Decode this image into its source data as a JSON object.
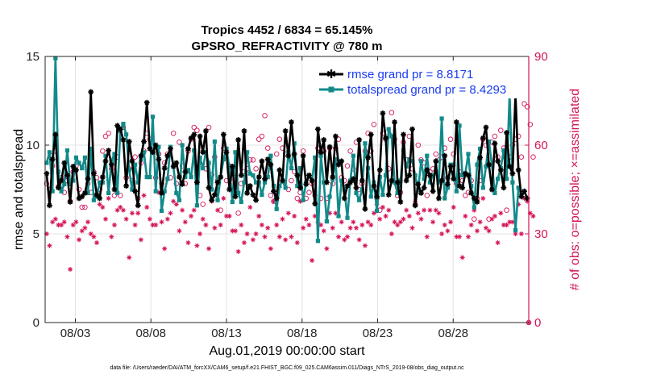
{
  "chart_data": {
    "type": "line",
    "title": "Tropics 4452 / 6834 = 65.145%",
    "subtitle": "GPSRO_REFRACTIVITY @ 780 m",
    "xlabel": "Aug.01,2019 00:00:00 start",
    "ylabel_left": "rmse and totalspread",
    "ylabel_right": "# of obs: o=possible; ×=assimilated",
    "footnote": "data file: /Users/raeder/DAI/ATM_forcXX/CAM6_setup/f.e21.FHIST_BGC.f09_025.CAM6assim.011/Diags_NTrS_2019-08/obs_diag_output.nc",
    "x_start_day": 0,
    "x_end_day": 32,
    "xticks": [
      {
        "day": 2,
        "label": "08/03"
      },
      {
        "day": 7,
        "label": "08/08"
      },
      {
        "day": 12,
        "label": "08/13"
      },
      {
        "day": 17,
        "label": "08/18"
      },
      {
        "day": 22,
        "label": "08/23"
      },
      {
        "day": 27,
        "label": "08/28"
      }
    ],
    "ylim_left": [
      0,
      15
    ],
    "yticks_left": [
      "0",
      "5",
      "10",
      "15"
    ],
    "ylim_right": [
      0,
      90
    ],
    "yticks_right": [
      "0",
      "30",
      "60",
      "90"
    ],
    "colors": {
      "rmse": "#000000",
      "spread": "#138a8a",
      "obs": "#d4145a",
      "legend_text": "#1a3cf0"
    },
    "legend": {
      "placement": "top-right",
      "entries": [
        "rmse grand pr = 8.8171",
        "totalspread grand pr = 8.4293"
      ]
    },
    "series": [
      {
        "name": "rmse",
        "axis": "left",
        "values": [
          8.4,
          6.6,
          9.2,
          10.6,
          7.6,
          8.0,
          9.0,
          8.3,
          6.8,
          8.8,
          8.6,
          7.0,
          7.1,
          7.3,
          8.1,
          13.0,
          8.4,
          7.2,
          7.0,
          8.2,
          9.1,
          9.7,
          8.9,
          7.5,
          11.1,
          10.9,
          10.3,
          7.7,
          10.2,
          9.1,
          7.4,
          6.6,
          9.4,
          10.2,
          12.4,
          9.8,
          9.6,
          10.0,
          9.2,
          7.3,
          8.7,
          9.4,
          9.8,
          8.8,
          9.0,
          8.2,
          7.8,
          8.5,
          9.8,
          10.4,
          10.6,
          7.9,
          10.5,
          9.6,
          10.8,
          7.6,
          6.9,
          7.2,
          7.9,
          8.2,
          10.6,
          9.6,
          7.5,
          8.8,
          7.1,
          10.3,
          8.3,
          10.8,
          7.3,
          7.7,
          7.2,
          6.9,
          8.2,
          9.1,
          8.1,
          9.2,
          8.9,
          7.4,
          7.0,
          8.6,
          8.0,
          10.8,
          9.4,
          11.3,
          9.5,
          8.3,
          7.6,
          9.4,
          7.8,
          8.3,
          8.0,
          6.7,
          10.9,
          9.6,
          10.3,
          7.9,
          9.9,
          8.2,
          10.5,
          8.9,
          9.1,
          7.0,
          7.7,
          7.9,
          8.1,
          7.6,
          10.3,
          8.0,
          6.4,
          9.3,
          10.6,
          7.7,
          7.1,
          8.6,
          11.8,
          10.4,
          7.2,
          8.0,
          11.3,
          7.9,
          6.8,
          10.6,
          8.0,
          8.3,
          10.9,
          6.6,
          7.8,
          7.3,
          7.6,
          8.6,
          8.3,
          7.4,
          9.1,
          7.0,
          8.0,
          9.4,
          7.8,
          8.8,
          8.1,
          11.3,
          7.7,
          7.6,
          8.4,
          8.3,
          7.3,
          7.0,
          6.8,
          9.3,
          10.4,
          11.0,
          8.9,
          7.5,
          10.1,
          9.1,
          8.6,
          7.6,
          10.7,
          8.8,
          8.4,
          12.9,
          8.6,
          7.1,
          7.4,
          7.0
        ]
      },
      {
        "name": "totalspread",
        "axis": "left",
        "values": [
          9.0,
          9.6,
          7.4,
          14.9,
          8.5,
          7.4,
          7.8,
          9.7,
          7.8,
          8.0,
          9.3,
          9.0,
          8.7,
          9.3,
          7.3,
          9.8,
          6.9,
          7.1,
          7.9,
          7.9,
          9.4,
          7.3,
          9.1,
          9.5,
          7.3,
          10.8,
          11.2,
          10.6,
          8.6,
          7.5,
          8.9,
          7.9,
          9.2,
          9.6,
          8.2,
          8.2,
          11.6,
          7.4,
          9.9,
          6.3,
          7.4,
          8.1,
          9.9,
          8.8,
          7.3,
          6.9,
          10.0,
          8.2,
          8.6,
          8.2,
          9.7,
          6.6,
          9.3,
          8.7,
          9.6,
          9.0,
          7.5,
          10.2,
          6.9,
          8.2,
          9.2,
          9.8,
          8.7,
          6.8,
          9.6,
          7.3,
          6.8,
          7.9,
          9.6,
          8.4,
          8.3,
          7.9,
          7.9,
          7.2,
          7.9,
          8.2,
          9.4,
          7.7,
          6.4,
          7.7,
          8.0,
          7.6,
          9.6,
          8.7,
          10.1,
          7.7,
          8.7,
          6.9,
          7.9,
          8.3,
          8.0,
          9.3,
          4.6,
          9.4,
          7.9,
          5.7,
          7.1,
          8.1,
          9.2,
          6.0,
          8.0,
          7.5,
          5.9,
          8.0,
          9.4,
          7.3,
          6.9,
          7.5,
          10.1,
          8.7,
          7.1,
          7.9,
          6.3,
          8.2,
          7.2,
          8.3,
          10.9,
          10.5,
          7.9,
          7.3,
          8.0,
          9.7,
          8.8,
          9.2,
          9.1,
          8.3,
          7.5,
          9.1,
          8.1,
          9.4,
          7.9,
          8.3,
          8.5,
          7.9,
          11.5,
          7.0,
          7.6,
          8.9,
          8.9,
          7.4,
          11.1,
          8.3,
          8.4,
          9.5,
          7.7,
          6.5,
          8.9,
          9.8,
          7.6,
          8.8,
          10.2,
          8.9,
          7.3,
          8.1,
          8.7,
          9.7,
          8.1,
          12.9,
          7.9,
          5.2,
          7.6,
          7.2
        ]
      },
      {
        "name": "obs possible",
        "axis": "right",
        "marker": "o",
        "values": [
          47,
          45,
          53,
          58,
          46,
          49,
          44,
          48,
          41,
          51,
          53,
          45,
          39,
          39,
          47,
          44,
          51,
          49,
          45,
          58,
          63,
          64,
          52,
          43,
          56,
          43,
          66,
          49,
          52,
          48,
          56,
          42,
          54,
          58,
          64,
          62,
          60,
          49,
          57,
          47,
          54,
          57,
          49,
          64,
          47,
          61,
          53,
          47,
          58,
          62,
          66,
          65,
          43,
          40,
          52,
          66,
          50,
          56,
          48,
          38,
          59,
          48,
          53,
          49,
          49,
          37,
          47,
          51,
          52,
          55,
          55,
          52,
          62,
          63,
          70,
          59,
          43,
          41,
          57,
          62,
          59,
          57,
          45,
          48,
          51,
          42,
          44,
          58,
          42,
          44,
          47,
          43,
          59,
          42,
          58,
          42,
          59,
          47,
          59,
          62,
          49,
          48,
          53,
          58,
          52,
          61,
          45,
          47,
          58,
          64,
          58,
          67,
          42,
          38,
          64,
          62,
          52,
          71,
          62,
          43,
          44,
          61,
          55,
          63,
          52,
          40,
          60,
          55,
          54,
          43,
          51,
          52,
          57,
          55,
          56,
          59,
          49,
          62,
          57,
          47,
          51,
          48,
          43,
          44,
          48,
          35,
          42,
          48,
          62,
          60,
          35,
          61,
          63,
          56,
          65,
          59,
          38,
          56,
          60,
          62,
          63,
          56,
          74,
          73,
          67,
          56,
          0
        ]
      },
      {
        "name": "obs assimilated",
        "axis": "right",
        "marker": "*",
        "values": [
          30,
          26,
          34,
          35,
          33,
          33,
          34,
          29,
          18,
          33,
          34,
          28,
          31,
          32,
          34,
          30,
          29,
          27,
          40,
          39,
          35,
          42,
          29,
          33,
          38,
          39,
          38,
          35,
          22,
          37,
          33,
          37,
          28,
          43,
          39,
          35,
          33,
          33,
          44,
          34,
          25,
          35,
          37,
          41,
          40,
          31,
          38,
          34,
          27,
          36,
          38,
          26,
          30,
          35,
          33,
          25,
          41,
          32,
          38,
          33,
          42,
          36,
          36,
          31,
          31,
          24,
          33,
          27,
          30,
          39,
          28,
          30,
          36,
          33,
          29,
          32,
          25,
          41,
          33,
          29,
          35,
          28,
          37,
          29,
          36,
          27,
          41,
          32,
          35,
          33,
          21,
          36,
          34,
          33,
          31,
          25,
          37,
          32,
          37,
          29,
          34,
          28,
          29,
          32,
          34,
          32,
          28,
          33,
          26,
          34,
          33,
          37,
          40,
          35,
          39,
          36,
          38,
          30,
          34,
          33,
          34,
          35,
          38,
          36,
          32,
          41,
          37,
          35,
          38,
          29,
          38,
          34,
          38,
          37,
          30,
          33,
          31,
          34,
          39,
          29,
          29,
          22,
          36,
          29,
          33,
          38,
          31,
          34,
          42,
          32,
          31,
          35,
          36,
          27,
          37,
          33,
          33,
          34,
          34,
          30,
          40,
          30,
          42,
          41,
          37,
          36,
          0
        ]
      }
    ]
  }
}
